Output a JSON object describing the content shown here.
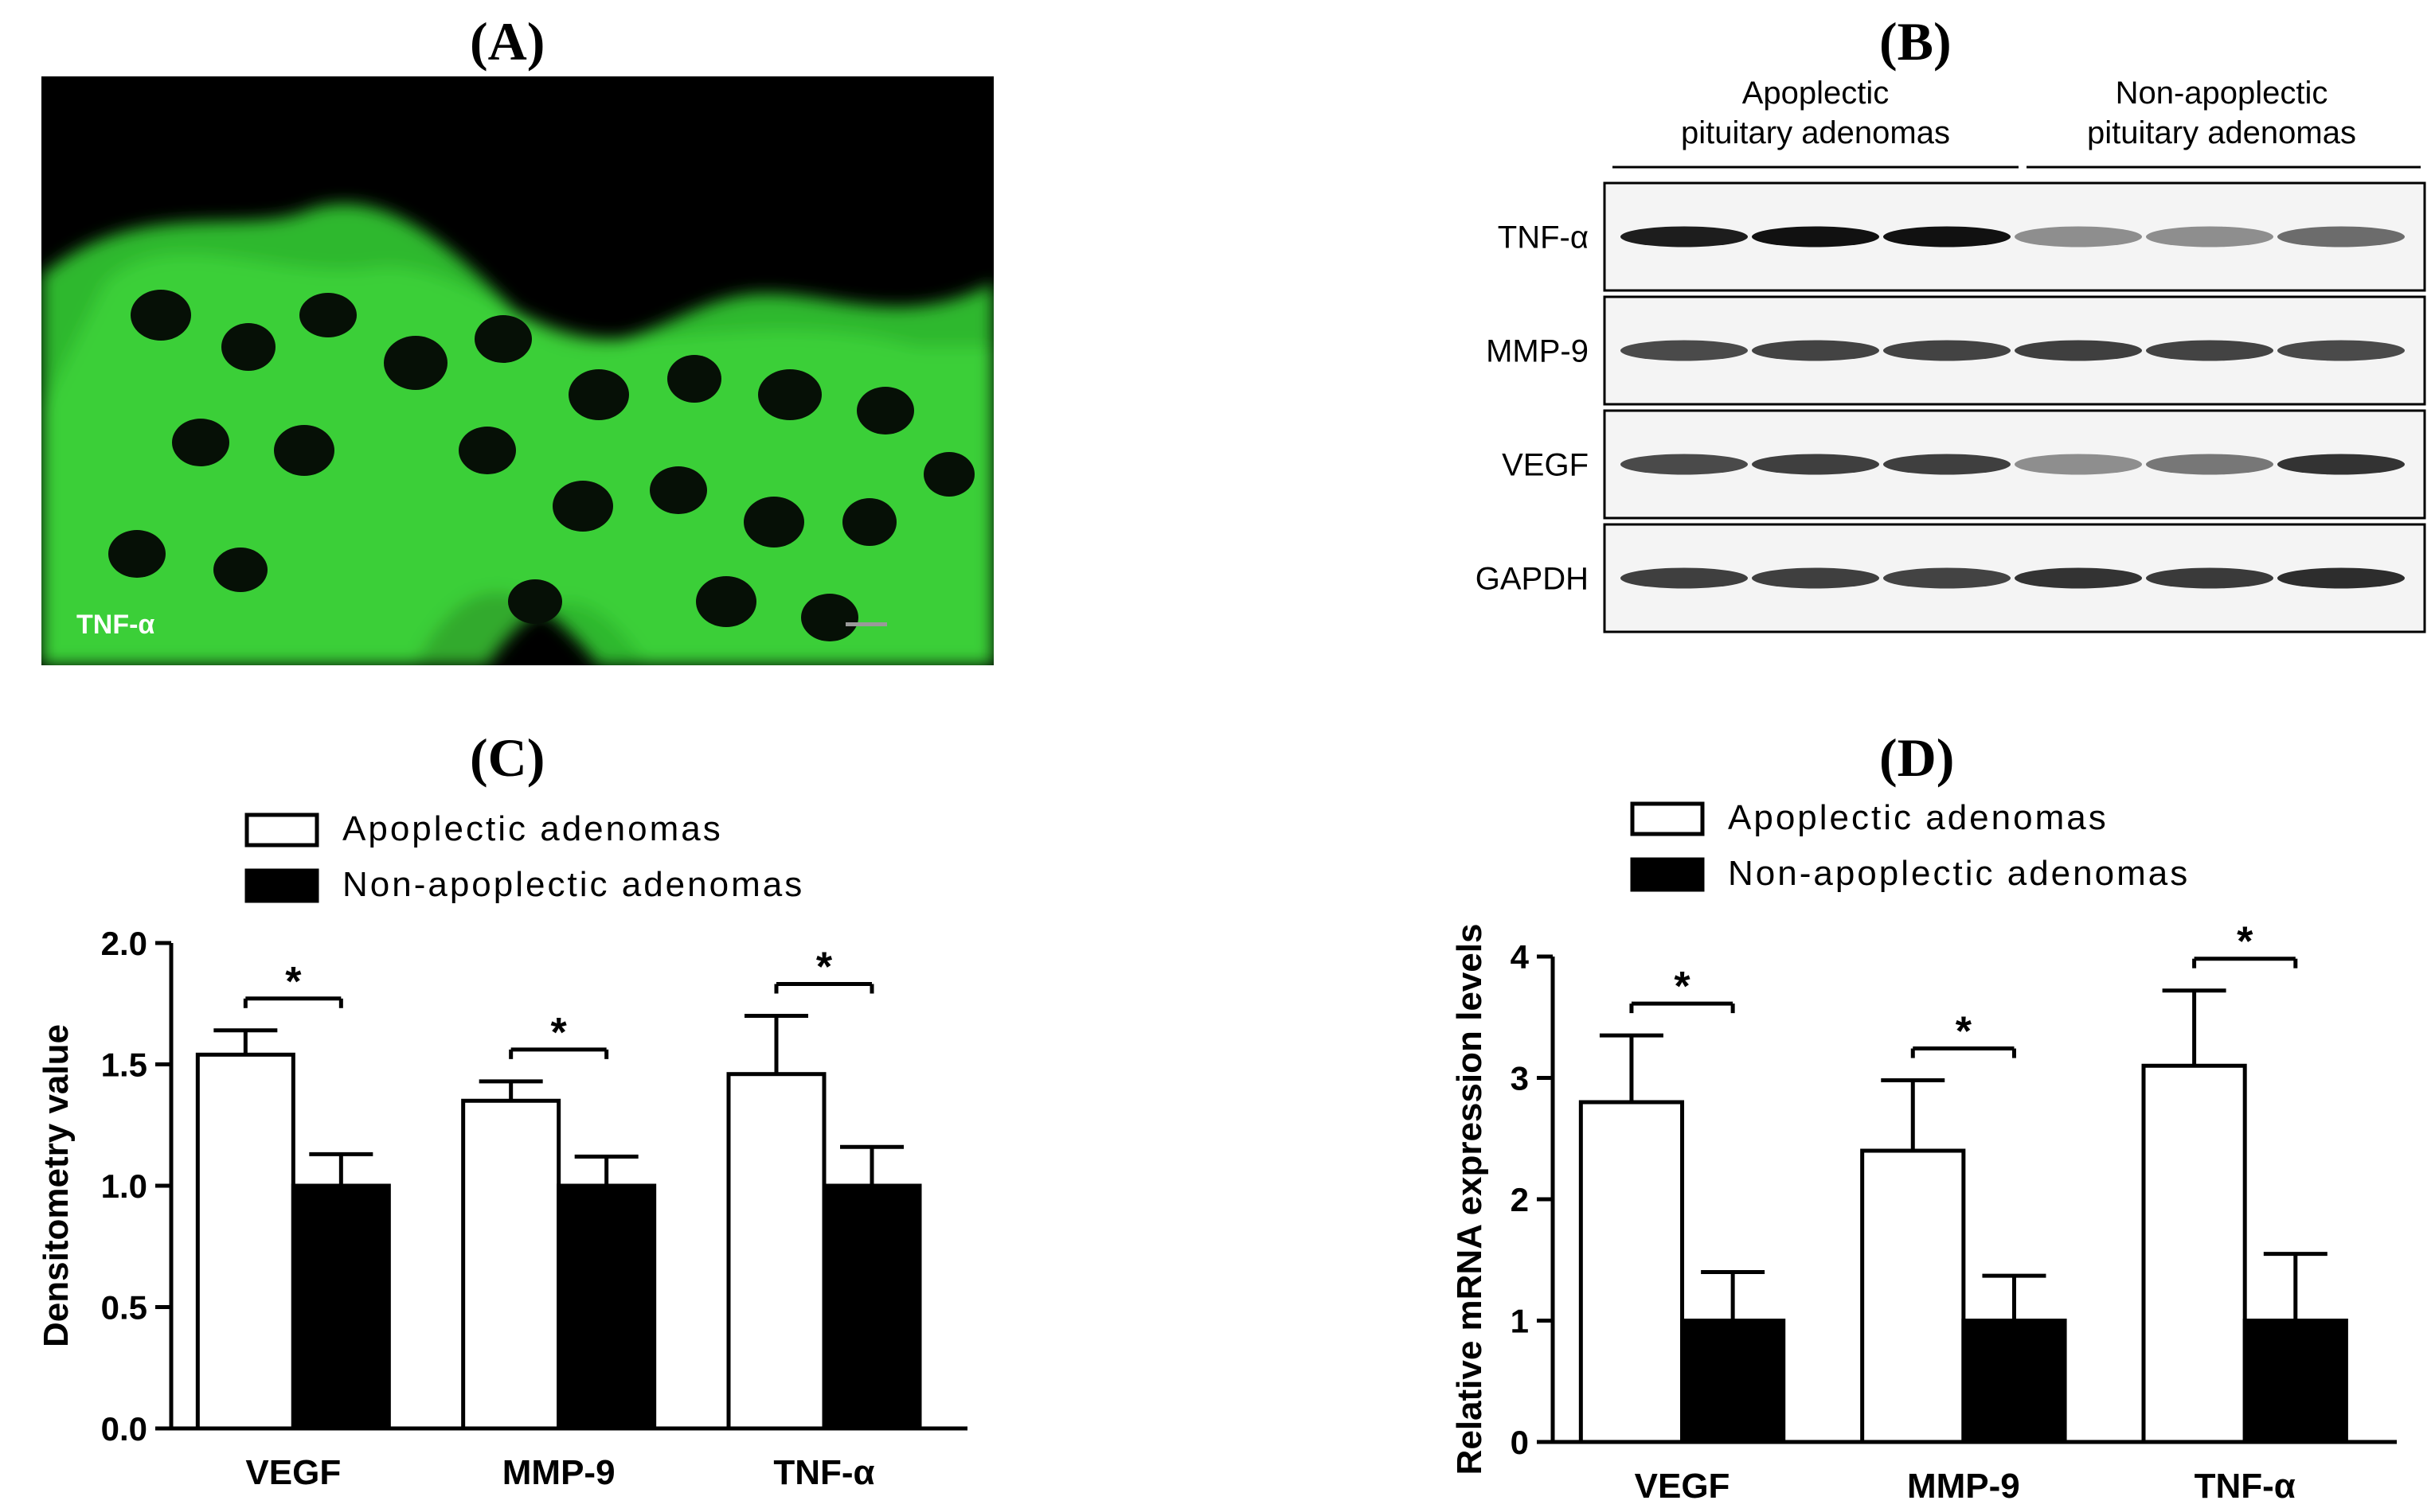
{
  "panels": {
    "a": {
      "letter": "(A)",
      "label": "TNF-α"
    },
    "b": {
      "letter": "(B)",
      "groups": [
        "Apoplectic\npituitary adenomas",
        "Non-apoplectic\npituitary adenomas"
      ],
      "rows": [
        "TNF-α",
        "MMP-9",
        "VEGF",
        "GAPDH"
      ]
    },
    "c": {
      "letter": "(C)"
    },
    "d": {
      "letter": "(D)"
    }
  },
  "chart_data": [
    {
      "type": "bar",
      "categories": [
        "VEGF",
        "MMP-9",
        "TNF-α"
      ],
      "series": [
        {
          "name": "Apoplectic adenomas",
          "values": [
            1.54,
            1.35,
            1.46
          ],
          "errors": [
            0.1,
            0.08,
            0.24
          ],
          "color": "#ffffff"
        },
        {
          "name": "Non-apoplectic adenomas",
          "values": [
            1.0,
            1.0,
            1.0
          ],
          "errors": [
            0.13,
            0.12,
            0.16
          ],
          "color": "#000000"
        }
      ],
      "significance": [
        "*",
        "*",
        "*"
      ],
      "ylabel": "Densitometry value",
      "ylim": [
        0,
        2.0
      ],
      "yticks": [
        "0.0",
        "0.5",
        "1.0",
        "1.5",
        "2.0"
      ],
      "legend": "top"
    },
    {
      "type": "bar",
      "categories": [
        "VEGF",
        "MMP-9",
        "TNF-α"
      ],
      "series": [
        {
          "name": "Apoplectic adenomas",
          "values": [
            2.8,
            2.4,
            3.1
          ],
          "errors": [
            0.55,
            0.58,
            0.62
          ],
          "color": "#ffffff"
        },
        {
          "name": "Non-apoplectic adenomas",
          "values": [
            1.0,
            1.0,
            1.0
          ],
          "errors": [
            0.4,
            0.37,
            0.55
          ],
          "color": "#000000"
        }
      ],
      "significance": [
        "*",
        "*",
        "*"
      ],
      "ylabel": "Relative mRNA expression levels",
      "ylim": [
        0,
        4
      ],
      "yticks": [
        "0",
        "1",
        "2",
        "3",
        "4"
      ],
      "legend": "top"
    }
  ]
}
